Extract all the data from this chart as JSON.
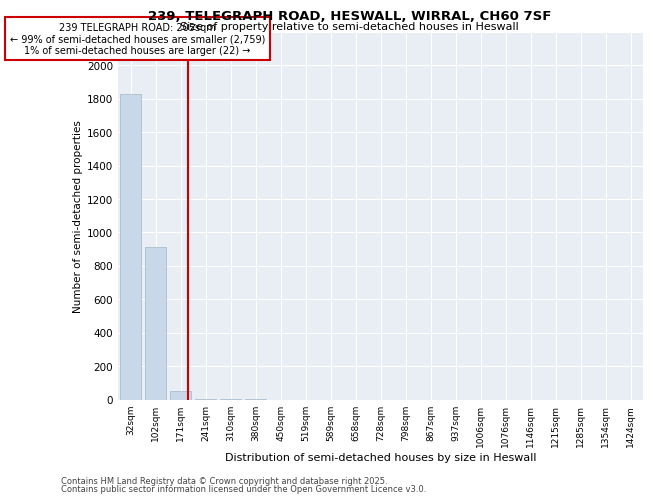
{
  "title1": "239, TELEGRAPH ROAD, HESWALL, WIRRAL, CH60 7SF",
  "title2": "Size of property relative to semi-detached houses in Heswall",
  "xlabel": "Distribution of semi-detached houses by size in Heswall",
  "ylabel": "Number of semi-detached properties",
  "categories": [
    "32sqm",
    "102sqm",
    "171sqm",
    "241sqm",
    "310sqm",
    "380sqm",
    "450sqm",
    "519sqm",
    "589sqm",
    "658sqm",
    "728sqm",
    "798sqm",
    "867sqm",
    "937sqm",
    "1006sqm",
    "1076sqm",
    "1146sqm",
    "1215sqm",
    "1285sqm",
    "1354sqm",
    "1424sqm"
  ],
  "values": [
    1830,
    910,
    50,
    5,
    2,
    1,
    0,
    0,
    0,
    0,
    0,
    0,
    0,
    0,
    0,
    0,
    0,
    0,
    0,
    0,
    0
  ],
  "bar_color": "#c8d8e8",
  "bar_edge_color": "#a0b8cc",
  "reference_line_x": 2.29,
  "reference_line_color": "#cc0000",
  "annotation_text": "239 TELEGRAPH ROAD: 205sqm\n← 99% of semi-detached houses are smaller (2,759)\n1% of semi-detached houses are larger (22) →",
  "annotation_box_color": "#cc0000",
  "ylim": [
    0,
    2200
  ],
  "yticks": [
    0,
    200,
    400,
    600,
    800,
    1000,
    1200,
    1400,
    1600,
    1800,
    2000,
    2200
  ],
  "background_color": "#e8eef4",
  "footer1": "Contains HM Land Registry data © Crown copyright and database right 2025.",
  "footer2": "Contains public sector information licensed under the Open Government Licence v3.0."
}
